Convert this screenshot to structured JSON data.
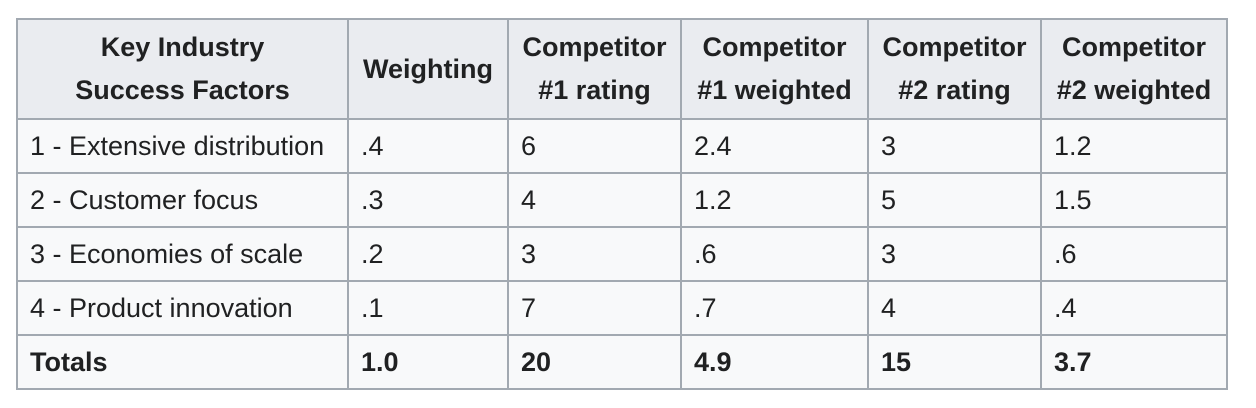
{
  "table": {
    "headers": [
      [
        "Key Industry",
        "Success Factors"
      ],
      [
        "Weighting"
      ],
      [
        "Competitor",
        "#1 rating"
      ],
      [
        "Competitor",
        "#1 weighted"
      ],
      [
        "Competitor",
        "#2 rating"
      ],
      [
        "Competitor",
        "#2 weighted"
      ]
    ],
    "rows": [
      [
        "1 - Extensive distribution",
        ".4",
        "6",
        "2.4",
        "3",
        "1.2"
      ],
      [
        "2 - Customer focus",
        ".3",
        "4",
        "1.2",
        "5",
        "1.5"
      ],
      [
        "3 - Economies of scale",
        ".2",
        "3",
        ".6",
        "3",
        ".6"
      ],
      [
        "4 - Product innovation",
        ".1",
        "7",
        ".7",
        "4",
        ".4"
      ]
    ],
    "totals": [
      "Totals",
      "1.0",
      "20",
      "4.9",
      "15",
      "3.7"
    ]
  },
  "colors": {
    "border": "#a2a9b1",
    "header_bg": "#eaecf0",
    "cell_bg": "#f8f9fa",
    "text": "#202122"
  }
}
